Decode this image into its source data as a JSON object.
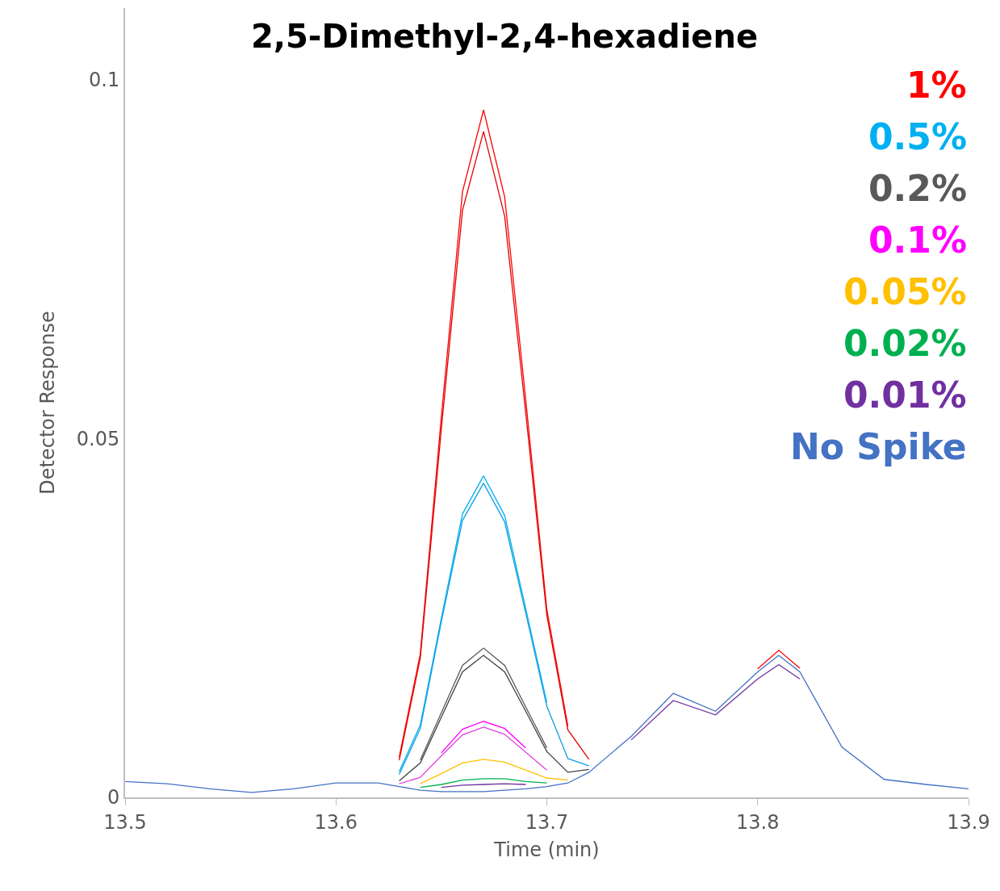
{
  "chart_data": {
    "type": "line",
    "title": "2,5-Dimethyl-2,4-hexadiene",
    "xlabel": "Time (min)",
    "ylabel": "Detector Response",
    "x": [
      13.5,
      13.52,
      13.54,
      13.56,
      13.58,
      13.6,
      13.62,
      13.63,
      13.64,
      13.65,
      13.66,
      13.67,
      13.68,
      13.69,
      13.7,
      13.71,
      13.72,
      13.74,
      13.76,
      13.78,
      13.8,
      13.81,
      13.82,
      13.84,
      13.86,
      13.88,
      13.9
    ],
    "xlim": [
      13.5,
      13.9
    ],
    "xticks": [
      13.5,
      13.6,
      13.7,
      13.8,
      13.9
    ],
    "ylim": [
      0,
      0.11
    ],
    "yticks": [
      0,
      0.05,
      0.1
    ],
    "grid": false,
    "legend": "top right",
    "marker": "none",
    "line_style": "solid",
    "series": [
      {
        "name": "1%",
        "color": "#ff0000",
        "values": [
          null,
          null,
          null,
          null,
          null,
          null,
          null,
          0.0056,
          0.02,
          0.0531,
          0.0844,
          0.0958,
          0.0837,
          0.0554,
          0.0262,
          0.0099,
          null,
          null,
          null,
          null,
          0.0179,
          0.0205,
          0.018,
          null,
          null,
          null,
          null
        ]
      },
      {
        "color": "#e00000",
        "values": [
          null,
          null,
          null,
          null,
          null,
          null,
          null,
          0.0052,
          0.0194,
          0.0514,
          0.0818,
          0.0928,
          0.081,
          0.0536,
          0.0254,
          0.0094,
          0.0053,
          null,
          null,
          null,
          null,
          null,
          null,
          null,
          null,
          null,
          null
        ]
      },
      {
        "name": "0.5%",
        "color": "#00b0f0",
        "values": [
          null,
          null,
          null,
          null,
          null,
          null,
          null,
          0.0036,
          0.0101,
          0.025,
          0.0395,
          0.0448,
          0.0393,
          0.0263,
          0.0132,
          null,
          null,
          null,
          null,
          null,
          null,
          null,
          null,
          null,
          null,
          null,
          null
        ]
      },
      {
        "color": "#10a0e0",
        "values": [
          null,
          null,
          null,
          null,
          null,
          null,
          null,
          0.0032,
          0.0096,
          0.0245,
          0.0386,
          0.0438,
          0.0384,
          0.0257,
          0.0127,
          0.0054,
          0.0044,
          null,
          null,
          null,
          null,
          null,
          null,
          null,
          null,
          null,
          null
        ]
      },
      {
        "name": "0.2%",
        "color": "#595959",
        "values": [
          null,
          null,
          null,
          null,
          null,
          null,
          null,
          null,
          0.0052,
          0.0118,
          0.0184,
          0.0208,
          0.0184,
          0.0126,
          0.0069,
          null,
          null,
          null,
          null,
          null,
          null,
          null,
          null,
          null,
          null,
          null,
          null
        ]
      },
      {
        "color": "#404040",
        "values": [
          null,
          null,
          null,
          null,
          null,
          null,
          null,
          0.0023,
          0.0048,
          0.0112,
          0.0175,
          0.0198,
          0.0175,
          0.012,
          0.0064,
          0.0035,
          0.0039,
          null,
          null,
          null,
          null,
          null,
          null,
          null,
          null,
          null,
          null
        ]
      },
      {
        "name": "0.1%",
        "color": "#ff00ff",
        "values": [
          null,
          null,
          null,
          null,
          null,
          null,
          null,
          null,
          null,
          0.0062,
          0.0095,
          0.0106,
          0.0096,
          0.0069,
          null,
          null,
          null,
          null,
          null,
          null,
          null,
          null,
          null,
          null,
          null,
          null,
          null
        ]
      },
      {
        "color": "#e040e0",
        "values": [
          null,
          null,
          null,
          null,
          null,
          null,
          null,
          0.0019,
          0.0028,
          0.0058,
          0.0087,
          0.0098,
          0.0088,
          0.0063,
          0.0038,
          null,
          null,
          null,
          null,
          null,
          null,
          null,
          null,
          null,
          null,
          null,
          null
        ]
      },
      {
        "name": "0.05%",
        "color": "#ffc000",
        "values": [
          null,
          null,
          null,
          null,
          null,
          null,
          null,
          null,
          0.0019,
          0.0033,
          0.0048,
          0.0053,
          0.0049,
          0.0038,
          0.0027,
          0.0024,
          null,
          null,
          null,
          null,
          null,
          null,
          null,
          null,
          null,
          null,
          null
        ]
      },
      {
        "name": "0.02%",
        "color": "#00b050",
        "values": [
          null,
          null,
          null,
          null,
          null,
          null,
          null,
          null,
          0.0014,
          0.0018,
          0.0024,
          0.0026,
          0.0026,
          0.0022,
          0.002,
          null,
          null,
          null,
          null,
          null,
          null,
          null,
          null,
          null,
          null,
          null,
          null
        ]
      },
      {
        "name": "0.01%",
        "color": "#7030a0",
        "values": [
          null,
          null,
          null,
          null,
          null,
          null,
          null,
          null,
          null,
          0.0014,
          0.0017,
          0.0018,
          0.0019,
          0.0018,
          null,
          null,
          null,
          0.008,
          0.0135,
          0.0115,
          0.0165,
          0.0185,
          0.0165,
          null,
          null,
          null,
          null
        ]
      },
      {
        "name": "No Spike",
        "color": "#4472c4",
        "values": [
          0.0022,
          0.0019,
          0.0012,
          0.0007,
          0.0012,
          0.002,
          0.002,
          0.0015,
          0.001,
          0.0008,
          0.0008,
          0.0008,
          0.001,
          0.0012,
          0.0015,
          0.002,
          0.0035,
          0.0085,
          0.0145,
          0.012,
          0.0175,
          0.0198,
          0.0175,
          0.007,
          0.0025,
          0.0018,
          0.0012
        ]
      }
    ]
  }
}
